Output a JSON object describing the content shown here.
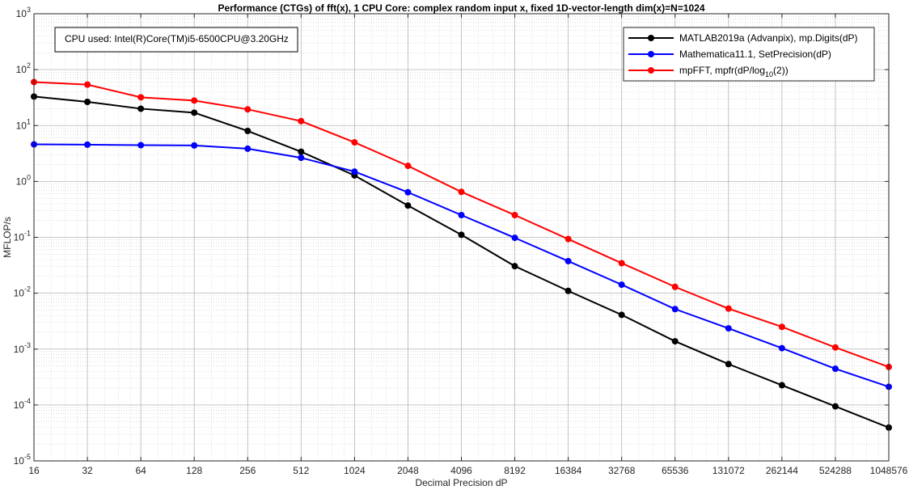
{
  "chart_data": {
    "type": "line",
    "title": "Performance (CTGs) of fft(x), 1 CPU Core: complex random input x, fixed 1D-vector-length dim(x)=N=1024",
    "xlabel": "Decimal Precision dP",
    "ylabel": "MFLOP/s",
    "x_scale": "log2",
    "y_scale": "log10",
    "x": [
      16,
      32,
      64,
      128,
      256,
      512,
      1024,
      2048,
      4096,
      8192,
      16384,
      32768,
      65536,
      131072,
      262144,
      524288,
      1048576
    ],
    "x_tick_labels": [
      "16",
      "32",
      "64",
      "128",
      "256",
      "512",
      "1024",
      "2048",
      "4096",
      "8192",
      "16384",
      "32768",
      "65536",
      "131072",
      "262144",
      "524288",
      "1048576"
    ],
    "ylim": [
      1e-05,
      1000
    ],
    "y_ticks": [
      {
        "value": 1e-05,
        "base": "10",
        "exp": "-5"
      },
      {
        "value": 0.0001,
        "base": "10",
        "exp": "-4"
      },
      {
        "value": 0.001,
        "base": "10",
        "exp": "-3"
      },
      {
        "value": 0.01,
        "base": "10",
        "exp": "-2"
      },
      {
        "value": 0.1,
        "base": "10",
        "exp": "-1"
      },
      {
        "value": 1,
        "base": "10",
        "exp": "0"
      },
      {
        "value": 10,
        "base": "10",
        "exp": "1"
      },
      {
        "value": 100,
        "base": "10",
        "exp": "2"
      },
      {
        "value": 1000,
        "base": "10",
        "exp": "3"
      }
    ],
    "grid": true,
    "minor_grid": true,
    "legend_position": "top-right",
    "series": [
      {
        "name": "MATLAB2019a (Advanpix), mp.Digits(dP)",
        "color": "#000000",
        "values": [
          33,
          26.5,
          20,
          17,
          8,
          3.4,
          1.28,
          0.37,
          0.111,
          0.0305,
          0.011,
          0.0041,
          0.00138,
          0.00054,
          0.000226,
          9.45e-05,
          3.95e-05
        ]
      },
      {
        "name": "Mathematica11.1, SetPrecision(dP)",
        "color": "#0000ff",
        "values": [
          4.6,
          4.55,
          4.45,
          4.4,
          3.85,
          2.65,
          1.5,
          0.64,
          0.25,
          0.098,
          0.0375,
          0.0142,
          0.0052,
          0.00235,
          0.00104,
          0.000445,
          0.000212
        ]
      },
      {
        "name": "mpFFT, mpfr(dP/log",
        "name_sub": "10",
        "name_tail": "(2))",
        "color": "#ff0000",
        "values": [
          60,
          54,
          32,
          28,
          19.5,
          12,
          5,
          1.9,
          0.65,
          0.25,
          0.093,
          0.0345,
          0.013,
          0.0053,
          0.0025,
          0.00107,
          0.00048
        ]
      }
    ],
    "annotation": "CPU used: Intel(R)Core(TM)i5-6500CPU@3.20GHz"
  }
}
